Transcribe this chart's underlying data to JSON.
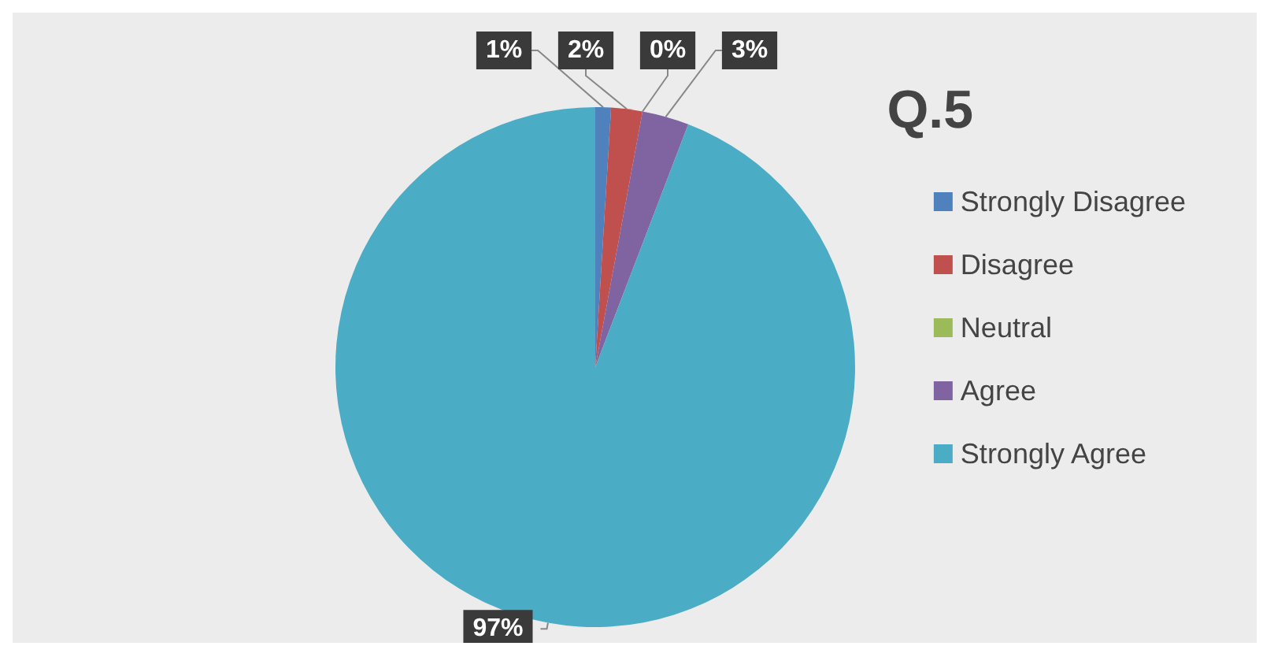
{
  "chart_data": {
    "type": "pie",
    "title": "Q.5",
    "categories": [
      "Strongly Disagree",
      "Disagree",
      "Neutral",
      "Agree",
      "Strongly Agree"
    ],
    "values": [
      1,
      2,
      0,
      3,
      97
    ],
    "colors": [
      "#4f81bd",
      "#c0504d",
      "#9bbb59",
      "#8064a2",
      "#4bacc6"
    ],
    "value_labels": [
      "1%",
      "2%",
      "0%",
      "3%",
      "97%"
    ],
    "legend": "right"
  }
}
